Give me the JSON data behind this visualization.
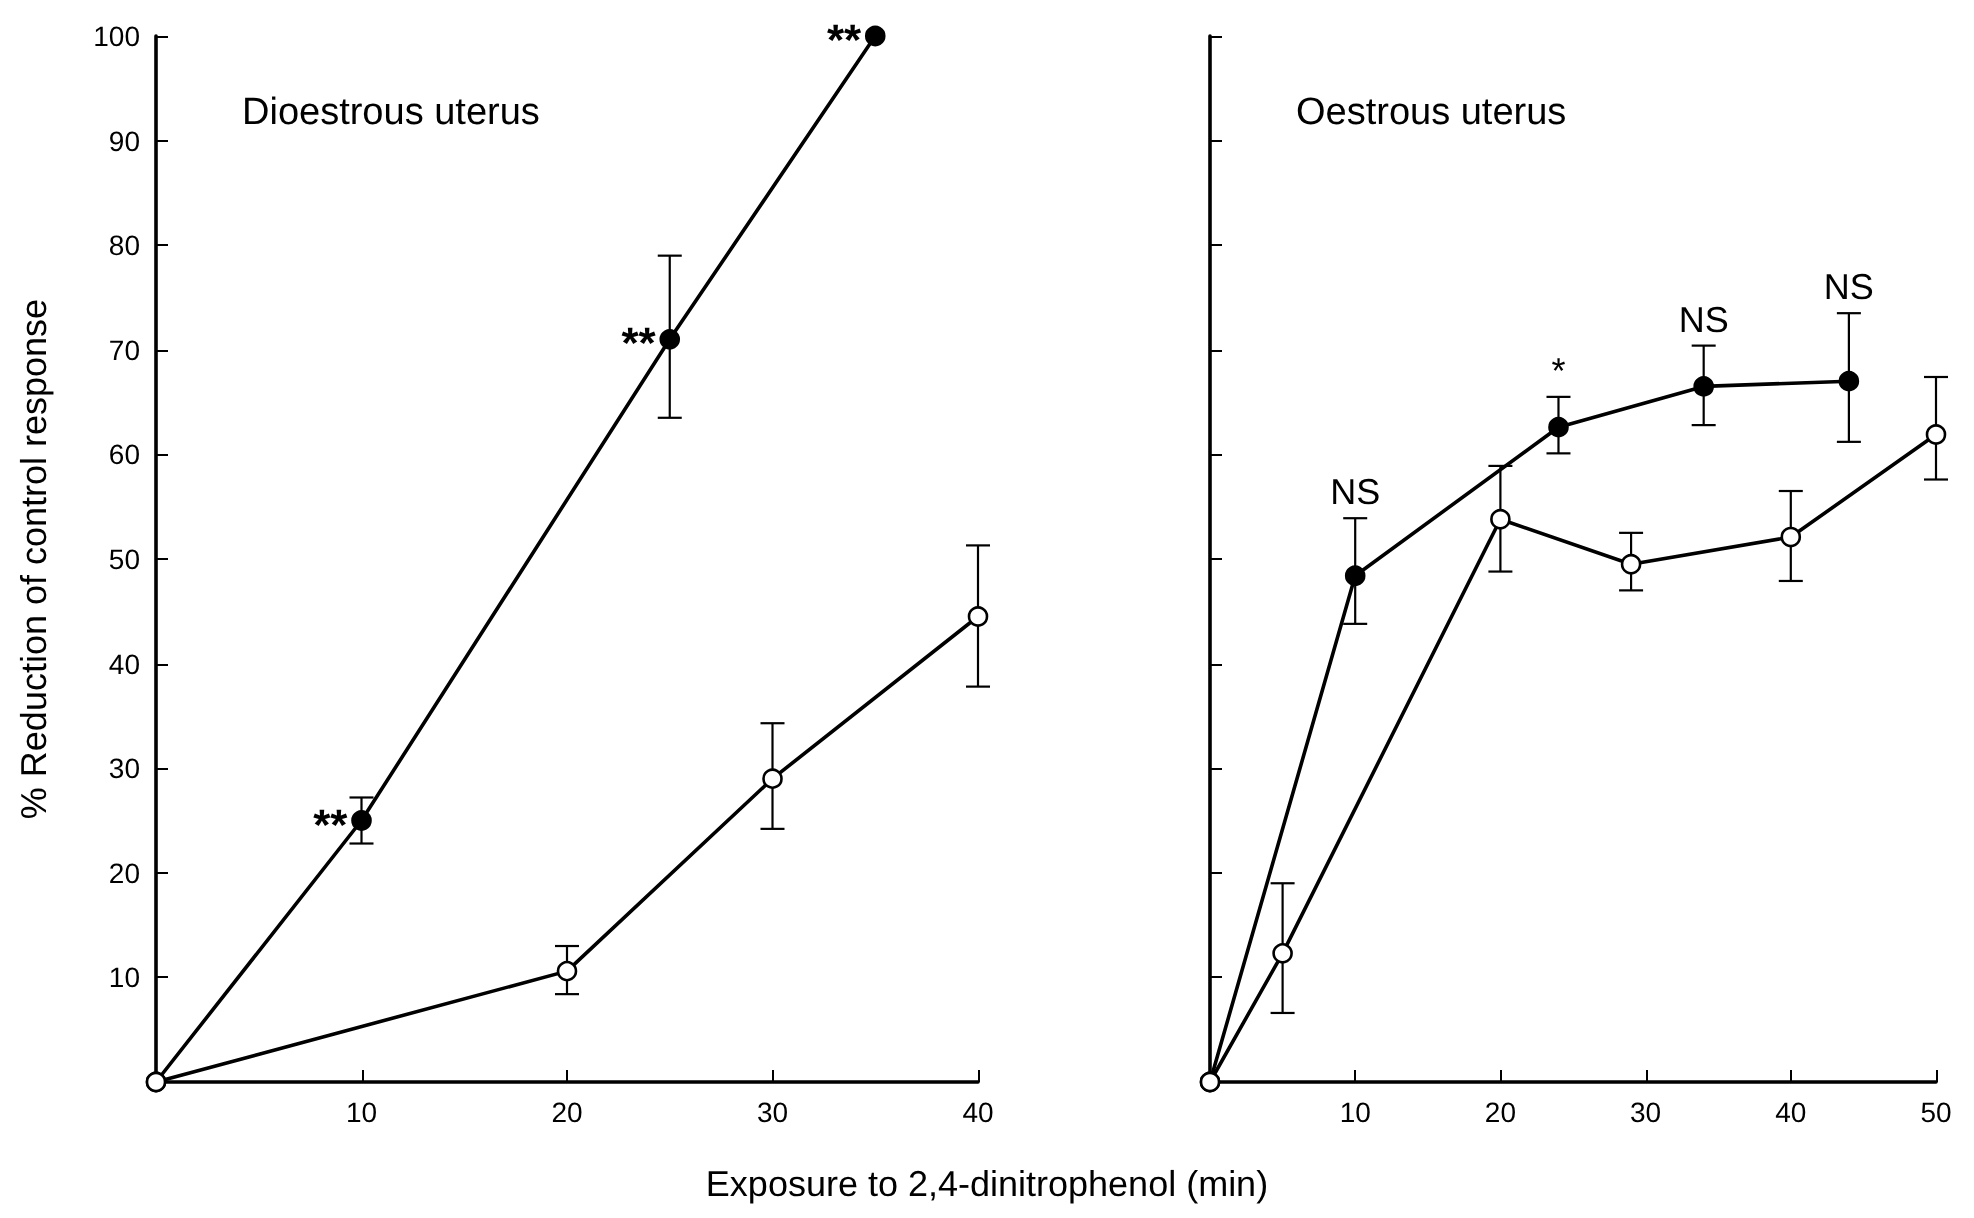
{
  "chart_data": [
    {
      "type": "line",
      "title": "Dioestrous uterus",
      "ylabel": "% Reduction of control response",
      "xlabel": "Exposure to 2,4-dinitrophenol (min)",
      "xlim": [
        0,
        40
      ],
      "xticks": [
        10,
        20,
        30,
        40
      ],
      "ylim": [
        0,
        100
      ],
      "yticks": [
        10,
        20,
        30,
        40,
        50,
        60,
        70,
        80,
        90,
        100
      ],
      "grid": false,
      "marker": "circle",
      "line_style": "solid",
      "series": [
        {
          "color": "#000000",
          "x": [
            0,
            10,
            25,
            35
          ],
          "values": [
            0,
            25,
            71,
            100
          ],
          "errors": [
            null,
            [
              22.8,
              27.2
            ],
            [
              63.5,
              79
            ],
            null
          ]
        },
        {
          "color": "#ffffff",
          "x": [
            0,
            20,
            30,
            40
          ],
          "values": [
            0,
            10.6,
            29,
            44.5
          ],
          "errors": [
            null,
            [
              8.4,
              13
            ],
            [
              24.2,
              34.3
            ],
            [
              37.8,
              51.3
            ]
          ]
        }
      ],
      "annotations": [
        {
          "text": "**",
          "x": 10,
          "y": 25
        },
        {
          "text": "**",
          "x": 25,
          "y": 71
        },
        {
          "text": "**",
          "x": 35,
          "y": 100
        }
      ]
    },
    {
      "type": "line",
      "title": "Oestrous uterus",
      "tick_labels": "x",
      "xlim": [
        0,
        50
      ],
      "xticks": [
        10,
        20,
        30,
        40,
        50
      ],
      "ylim": [
        0,
        100
      ],
      "yticks": [
        10,
        20,
        30,
        40,
        50,
        60,
        70,
        80,
        90,
        100
      ],
      "grid": false,
      "marker": "circle",
      "line_style": "solid",
      "series": [
        {
          "color": "#000000",
          "x": [
            0,
            10,
            24,
            34,
            44
          ],
          "values": [
            0,
            48.4,
            62.6,
            66.5,
            67
          ],
          "errors": [
            null,
            [
              43.8,
              53.9
            ],
            [
              60.1,
              65.5
            ],
            [
              62.8,
              70.4
            ],
            [
              61.2,
              73.5
            ]
          ]
        },
        {
          "color": "#ffffff",
          "x": [
            0,
            5,
            20,
            29,
            40,
            50
          ],
          "values": [
            0,
            12.3,
            53.8,
            49.5,
            52.1,
            61.9
          ],
          "errors": [
            null,
            [
              6.6,
              19
            ],
            [
              48.8,
              58.9
            ],
            [
              47,
              52.5
            ],
            [
              47.9,
              56.5
            ],
            [
              57.6,
              67.4
            ]
          ]
        }
      ],
      "annotations": [
        {
          "text": "NS",
          "x": 10,
          "y": 48.4
        },
        {
          "text": "*",
          "x": 24,
          "y": 62.6
        },
        {
          "text": "NS",
          "x": 34,
          "y": 66.5
        },
        {
          "text": "NS",
          "x": 44,
          "y": 67
        }
      ]
    }
  ]
}
